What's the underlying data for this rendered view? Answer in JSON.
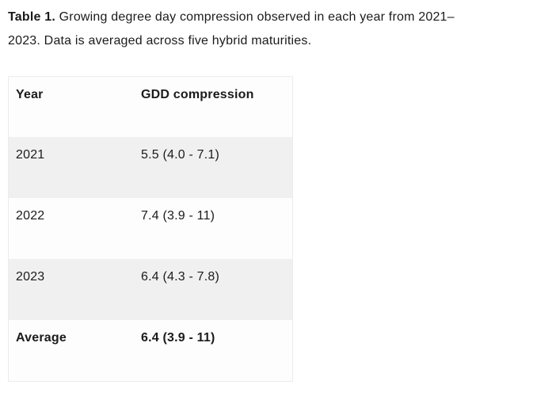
{
  "caption": {
    "label": "Table 1.",
    "line1": " Growing degree day compression observed in each year from 2021–",
    "line2": "2023. Data is averaged across five hybrid maturities."
  },
  "table": {
    "columns": [
      "Year",
      "GDD compression"
    ],
    "rows": [
      {
        "year": "2021",
        "value": "5.5 (4.0 - 7.1)",
        "bold": false
      },
      {
        "year": "2022",
        "value": "7.4 (3.9 - 11)",
        "bold": false
      },
      {
        "year": "2023",
        "value": "6.4 (4.3 - 7.8)",
        "bold": false
      },
      {
        "year": "Average",
        "value": "6.4 (3.9 - 11)",
        "bold": true
      }
    ],
    "colors": {
      "table_background": "#fdfdfd",
      "stripe": "#f0f0f0",
      "border": "#ececec",
      "text": "#1b1b1b"
    }
  }
}
